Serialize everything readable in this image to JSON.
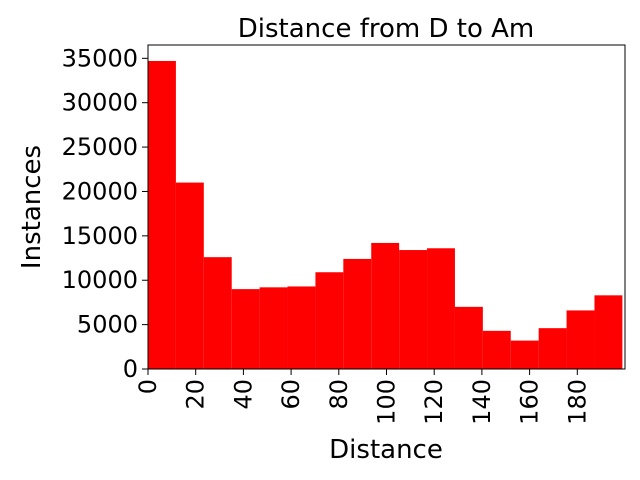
{
  "chart_data": {
    "type": "histogram",
    "title": "Distance from D to Am",
    "xlabel": "Distance",
    "ylabel": "Instances",
    "xlim": [
      0,
      200
    ],
    "ylim": [
      0,
      36500
    ],
    "bin_width": 11.7,
    "bins": [
      {
        "x0": 0,
        "value": 34700
      },
      {
        "x0": 11.7,
        "value": 21000
      },
      {
        "x0": 23.4,
        "value": 12600
      },
      {
        "x0": 35.1,
        "value": 9000
      },
      {
        "x0": 46.8,
        "value": 9200
      },
      {
        "x0": 58.5,
        "value": 9300
      },
      {
        "x0": 70.2,
        "value": 10900
      },
      {
        "x0": 81.9,
        "value": 12400
      },
      {
        "x0": 93.6,
        "value": 14200
      },
      {
        "x0": 105.3,
        "value": 13400
      },
      {
        "x0": 117.0,
        "value": 13600
      },
      {
        "x0": 128.7,
        "value": 7000
      },
      {
        "x0": 140.4,
        "value": 4300
      },
      {
        "x0": 152.1,
        "value": 3200
      },
      {
        "x0": 163.8,
        "value": 4600
      },
      {
        "x0": 175.5,
        "value": 6600
      },
      {
        "x0": 187.2,
        "value": 8300
      }
    ],
    "xticks": [
      0,
      20,
      40,
      60,
      80,
      100,
      120,
      140,
      160,
      180
    ],
    "yticks": [
      0,
      5000,
      10000,
      15000,
      20000,
      25000,
      30000,
      35000
    ],
    "bar_color": "#ff0000",
    "grid": false,
    "legend": "none"
  }
}
